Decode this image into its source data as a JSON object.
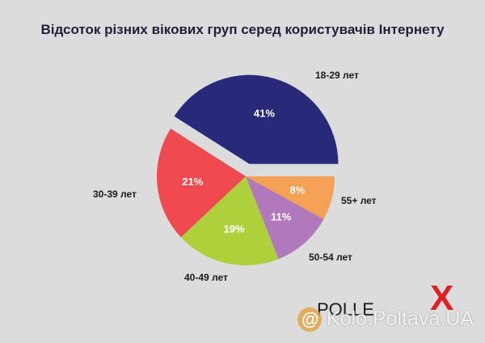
{
  "chart_data": {
    "type": "pie",
    "title": "Відсоток різних вікових груп серед користувачів Інтернету",
    "slices": [
      {
        "category": "18-29 лет",
        "value": 41,
        "label": "41%",
        "color": "#262a78",
        "exploded": true
      },
      {
        "category": "55+ лет",
        "value": 8,
        "label": "8%",
        "color": "#f4a055",
        "exploded": false
      },
      {
        "category": "50-54 лет",
        "value": 11,
        "label": "11%",
        "color": "#b179bb",
        "exploded": false
      },
      {
        "category": "40-49 лет",
        "value": 19,
        "label": "19%",
        "color": "#aed03a",
        "exploded": false
      },
      {
        "category": "30-39 лет",
        "value": 21,
        "label": "21%",
        "color": "#ef4a50",
        "exploded": false
      }
    ]
  },
  "brand": {
    "name": "POLLE",
    "mark": "X"
  },
  "watermark": {
    "symbol": "@",
    "text": "Kolo.Poltava.UA"
  }
}
